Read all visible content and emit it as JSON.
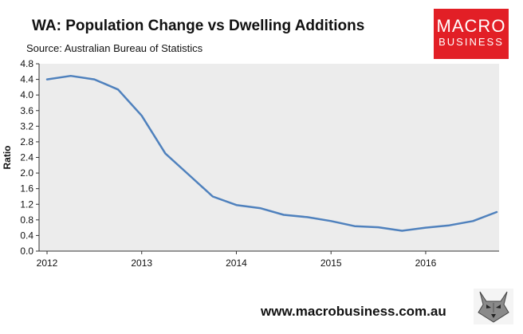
{
  "header": {
    "title": "WA: Population Change vs Dwelling Additions",
    "subtitle": "Source: Australian Bureau of Statistics"
  },
  "logo": {
    "line1": "MACRO",
    "line2": "BUSINESS",
    "background": "#e21f26"
  },
  "footer": {
    "url": "www.macrobusiness.com.au",
    "mascot_icon": "wolf-icon"
  },
  "chart_data": {
    "type": "line",
    "title": "WA: Population Change vs Dwelling Additions",
    "xlabel": "",
    "ylabel": "Ratio",
    "xlim": [
      2012,
      2016.75
    ],
    "ylim": [
      0,
      4.8
    ],
    "yticks": [
      "0.0",
      "0.4",
      "0.8",
      "1.2",
      "1.6",
      "2.0",
      "2.4",
      "2.8",
      "3.2",
      "3.6",
      "4.0",
      "4.4",
      "4.8"
    ],
    "xticks": [
      "2012",
      "2013",
      "2014",
      "2015",
      "2016"
    ],
    "grid": false,
    "plot_background": "#ececec",
    "series": [
      {
        "name": "Ratio",
        "color": "#4f81bd",
        "x": [
          2012,
          2012.25,
          2012.5,
          2012.75,
          2013,
          2013.25,
          2013.5,
          2013.75,
          2014,
          2014.25,
          2014.5,
          2014.75,
          2015,
          2015.25,
          2015.5,
          2015.75,
          2016,
          2016.25,
          2016.5,
          2016.75
        ],
        "values": [
          4.4,
          4.49,
          4.4,
          4.14,
          3.47,
          2.5,
          1.95,
          1.4,
          1.18,
          1.1,
          0.93,
          0.87,
          0.77,
          0.64,
          0.61,
          0.52,
          0.6,
          0.66,
          0.77,
          1.0
        ]
      }
    ]
  }
}
